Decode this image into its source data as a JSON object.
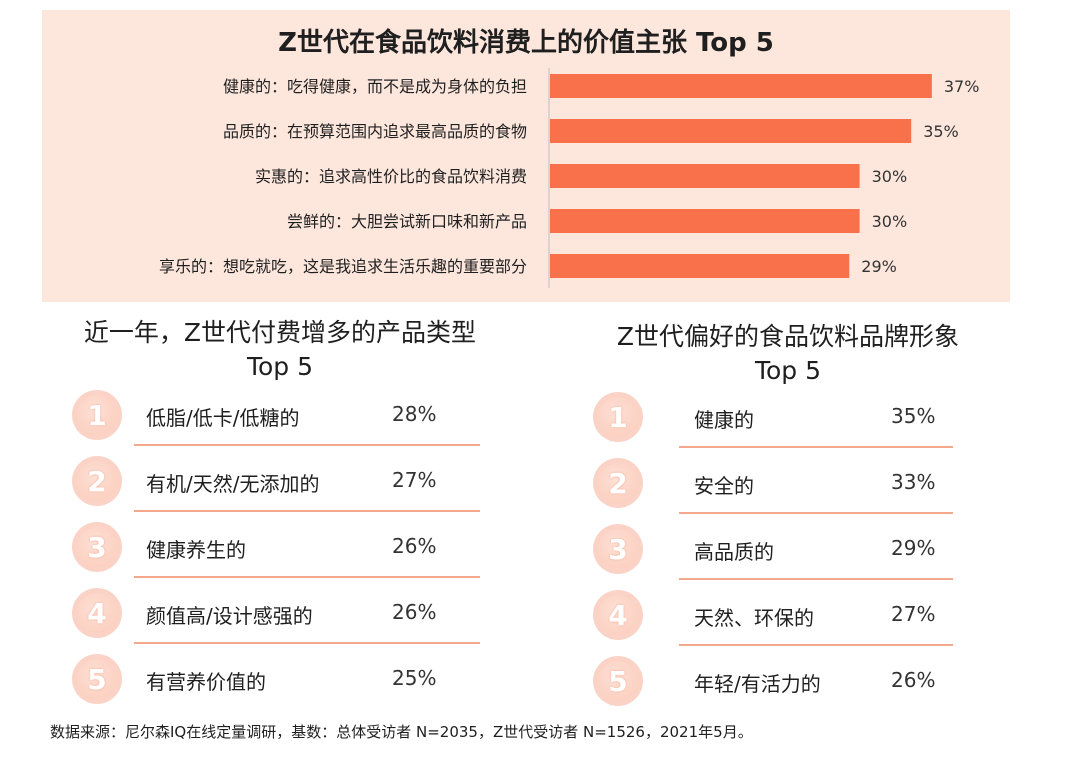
{
  "chart_data": {
    "type": "bar",
    "orientation": "horizontal",
    "title": "Z世代在食品饮料消费上的价值主张 Top 5",
    "categories": [
      "健康的：吃得健康，而不是成为身体的负担",
      "品质的：在预算范围内追求最高品质的食物",
      "实惠的：追求高性价比的食品饮料消费",
      "尝鲜的：大胆尝试新口味和新产品",
      "享乐的：想吃就吃，这是我追求生活乐趣的重要部分"
    ],
    "values": [
      37,
      35,
      30,
      30,
      29
    ],
    "value_labels": [
      "37%",
      "35%",
      "30%",
      "30%",
      "29%"
    ],
    "unit": "%",
    "bar_color": "#f8714a",
    "background_color": "#fde7dd",
    "grid": false
  },
  "left_list": {
    "title_line1": "近一年，Z世代付费增多的产品类型",
    "title_line2": "Top 5",
    "items": [
      {
        "rank": "1",
        "label": "低脂/低卡/低糖的",
        "value": "28%"
      },
      {
        "rank": "2",
        "label": "有机/天然/无添加的",
        "value": "27%"
      },
      {
        "rank": "3",
        "label": "健康养生的",
        "value": "26%"
      },
      {
        "rank": "4",
        "label": "颜值高/设计感强的",
        "value": "26%"
      },
      {
        "rank": "5",
        "label": "有营养价值的",
        "value": "25%"
      }
    ]
  },
  "right_list": {
    "title_line1": "Z世代偏好的食品饮料品牌形象",
    "title_line2": "Top 5",
    "items": [
      {
        "rank": "1",
        "label": "健康的",
        "value": "35%"
      },
      {
        "rank": "2",
        "label": "安全的",
        "value": "33%"
      },
      {
        "rank": "3",
        "label": "高品质的",
        "value": "29%"
      },
      {
        "rank": "4",
        "label": "天然、环保的",
        "value": "27%"
      },
      {
        "rank": "5",
        "label": "年轻/有活力的",
        "value": "26%"
      }
    ]
  },
  "footnote": "数据来源：尼尔森IQ在线定量调研，基数：总体受访者 N=2035，Z世代受访者 N=1526，2021年5月。",
  "colors": {
    "accent": "#f8714a",
    "panel_bg": "#fde7dd",
    "badge": "#fbd3c6",
    "divider": "#f4a98f"
  }
}
